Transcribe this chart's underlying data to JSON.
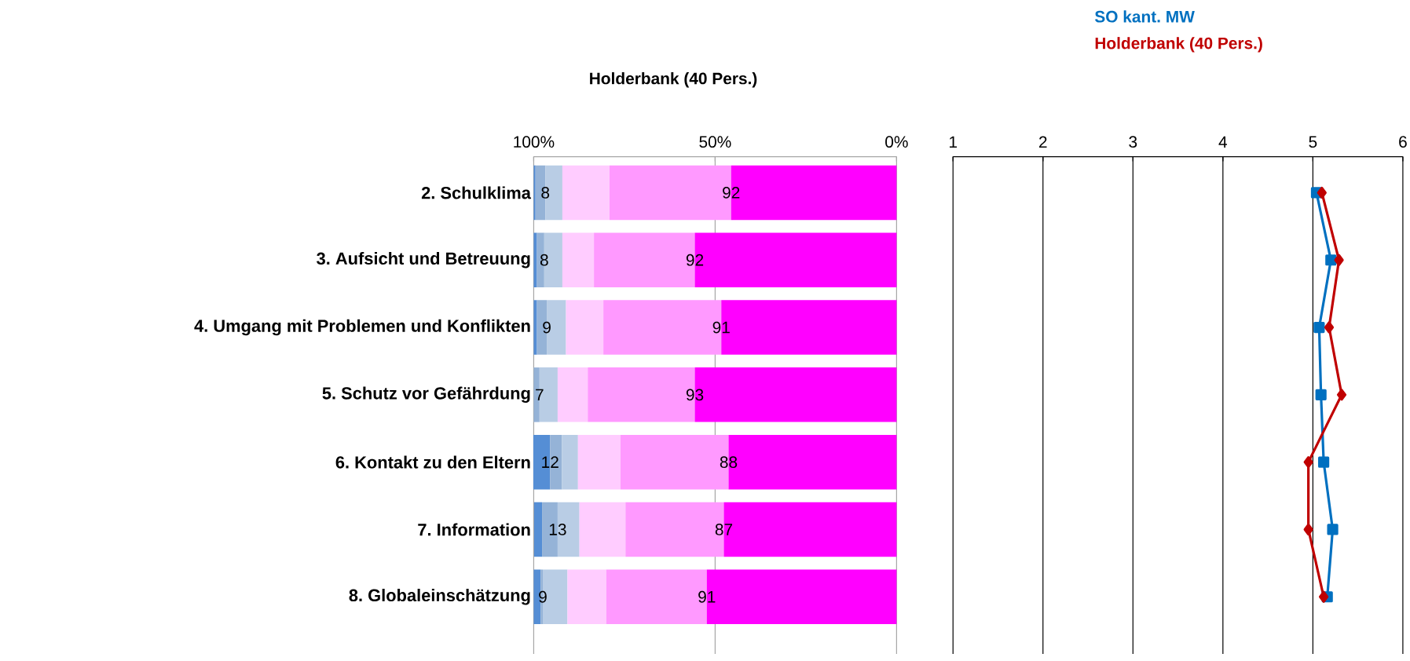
{
  "chart_data": [
    {
      "type": "bar",
      "orientation": "horizontal",
      "stacked": true,
      "title": "Holderbank (40 Pers.)",
      "categories": [
        "2. Schulklima",
        "3. Aufsicht und Betreuung",
        "4. Umgang mit Problemen und Konflikten",
        "5. Schutz vor Gefährdung",
        "6. Kontakt zu den Eltern",
        "7. Information",
        "8. Globaleinschätzung"
      ],
      "xlim": [
        100,
        0
      ],
      "xticks": [
        {
          "value": 100,
          "label": "100%"
        },
        {
          "value": 50,
          "label": "50%"
        },
        {
          "value": 0,
          "label": "0%"
        }
      ],
      "grid": "x",
      "annotations": [
        {
          "text": "8",
          "x": 96.8,
          "y": "2. Schulklima"
        },
        {
          "text": "92",
          "x": 45.6,
          "y": "2. Schulklima"
        },
        {
          "text": "8",
          "x": 97.1,
          "y": "3. Aufsicht und Betreuung"
        },
        {
          "text": "92",
          "x": 55.6,
          "y": "3. Aufsicht und Betreuung"
        },
        {
          "text": "9",
          "x": 96.4,
          "y": "4. Umgang mit Problemen und Konflikten"
        },
        {
          "text": "91",
          "x": 48.3,
          "y": "4. Umgang mit Problemen und Konflikten"
        },
        {
          "text": "7",
          "x": 98.4,
          "y": "5. Schutz vor Gefährdung"
        },
        {
          "text": "93",
          "x": 55.6,
          "y": "5. Schutz vor Gefährdung"
        },
        {
          "text": "12",
          "x": 95.5,
          "y": "6. Kontakt zu den Eltern"
        },
        {
          "text": "88",
          "x": 46.3,
          "y": "6. Kontakt zu den Eltern"
        },
        {
          "text": "13",
          "x": 93.4,
          "y": "7. Information"
        },
        {
          "text": "87",
          "x": 47.6,
          "y": "7. Information"
        },
        {
          "text": "9",
          "x": 97.5,
          "y": "8. Globaleinschätzung"
        },
        {
          "text": "91",
          "x": 52.3,
          "y": "8. Globaleinschätzung"
        }
      ],
      "series": [
        {
          "color": "#ff00ff",
          "values": [
            45.6,
            55.6,
            48.3,
            55.6,
            46.3,
            47.6,
            52.3
          ]
        },
        {
          "color": "#ff99ff",
          "values": [
            33.5,
            27.8,
            32.5,
            29.5,
            29.8,
            27.1,
            27.7
          ]
        },
        {
          "color": "#ffccff",
          "values": [
            13.0,
            8.7,
            10.3,
            8.3,
            11.7,
            12.7,
            10.7
          ]
        },
        {
          "color": "#b9cde5",
          "values": [
            4.7,
            5.0,
            5.3,
            5.0,
            4.4,
            6.0,
            6.8
          ]
        },
        {
          "color": "#95b3d7",
          "values": [
            2.7,
            2.0,
            2.7,
            1.6,
            3.3,
            4.3,
            0.6
          ]
        },
        {
          "color": "#558ed5",
          "values": [
            0.5,
            0.9,
            0.9,
            0,
            4.6,
            2.2,
            1.9
          ]
        }
      ]
    },
    {
      "type": "line",
      "orientation": "horizontal",
      "categories": [
        null,
        null,
        null,
        null,
        null,
        null,
        null
      ],
      "xlim": [
        1,
        6
      ],
      "xticks": [
        1,
        2,
        3,
        4,
        5,
        6
      ],
      "grid": "x",
      "series": [
        {
          "name": "SO kant. MW",
          "color": "#0070c0",
          "marker": "square",
          "values": [
            5.04,
            5.2,
            5.07,
            5.09,
            5.12,
            5.22,
            5.16
          ]
        },
        {
          "name": "Holderbank (40 Pers.)",
          "color": "#c00000",
          "marker": "diamond",
          "values": [
            5.1,
            5.29,
            5.18,
            5.32,
            4.95,
            4.95,
            5.12
          ]
        }
      ]
    }
  ]
}
